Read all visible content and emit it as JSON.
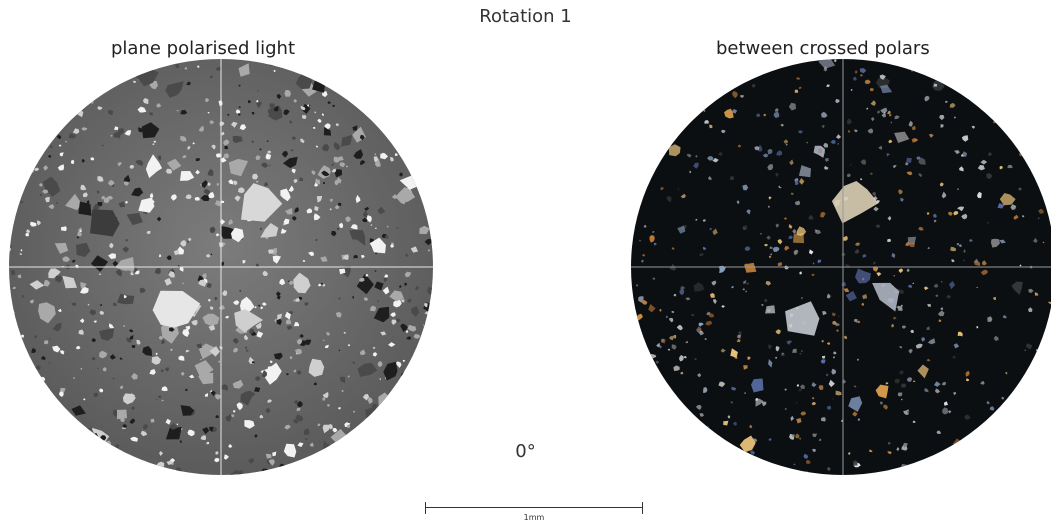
{
  "figure": {
    "title": "Rotation 1",
    "left_caption": "plane polarised light",
    "right_caption": "between crossed polars",
    "rotation_label": "0°",
    "scale_label": "1mm"
  },
  "colors": {
    "background": "#ffffff",
    "ppl_base": "#6f6f6f",
    "xpl_base": "#0c0f12",
    "text": "#333333"
  }
}
